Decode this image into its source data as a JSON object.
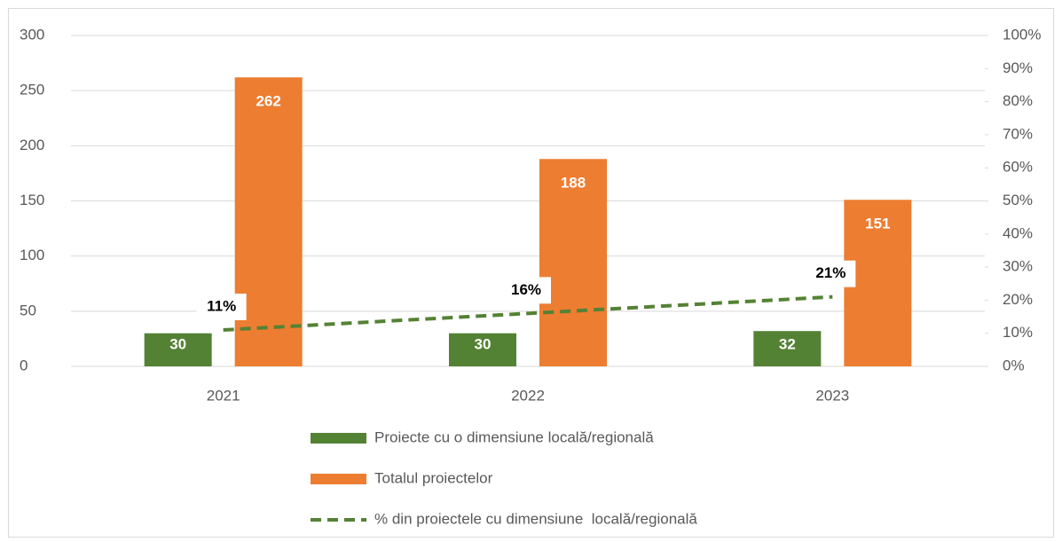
{
  "chart_data": {
    "type": "bar",
    "categories": [
      "2021",
      "2022",
      "2023"
    ],
    "series": [
      {
        "name": "Proiecte cu o dimensiune locală/regională",
        "color": "#548235",
        "values": [
          30,
          30,
          32
        ]
      },
      {
        "name": "Totalul proiectelor",
        "color": "#ed7d31",
        "values": [
          262,
          188,
          151
        ]
      },
      {
        "name": "% din proiectele cu dimensiune  locală/regională",
        "color": "#548235",
        "type": "line",
        "axis": "y2",
        "dashed": true,
        "values": [
          11,
          16,
          21
        ],
        "value_labels": [
          "11%",
          "16%",
          "21%"
        ]
      }
    ],
    "ylim": [
      0,
      300
    ],
    "yticks": [
      0,
      50,
      100,
      150,
      200,
      250,
      300
    ],
    "y2lim": [
      0,
      100
    ],
    "y2ticks": [
      {
        "value": 0,
        "label": "0%"
      },
      {
        "value": 10,
        "label": "10%"
      },
      {
        "value": 20,
        "label": "20%"
      },
      {
        "value": 30,
        "label": "30%"
      },
      {
        "value": 40,
        "label": "40%"
      },
      {
        "value": 50,
        "label": "50%"
      },
      {
        "value": 60,
        "label": "60%"
      },
      {
        "value": 70,
        "label": "70%"
      },
      {
        "value": 80,
        "label": "80%"
      },
      {
        "value": 90,
        "label": "90%"
      },
      {
        "value": 100,
        "label": "100%"
      }
    ],
    "grid": true,
    "legend": "bottom"
  }
}
